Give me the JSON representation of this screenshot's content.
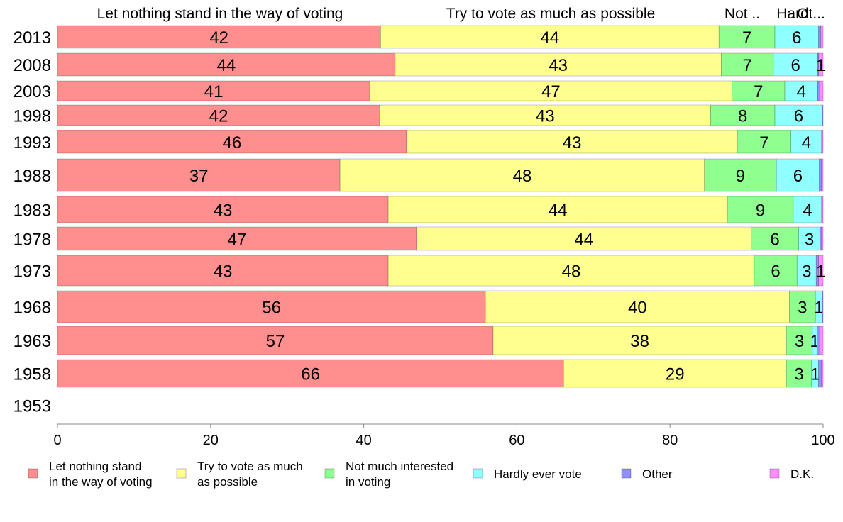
{
  "chart_data": {
    "type": "bar",
    "orientation": "horizontal",
    "stacked": true,
    "top_labels": [
      "Let nothing stand in the way of voting",
      "Try to vote as much as possible",
      "Not ..",
      "Hard",
      "Ot..."
    ],
    "categories": [
      "2013",
      "2008",
      "2003",
      "1998",
      "1993",
      "1988",
      "1983",
      "1978",
      "1973",
      "1968",
      "1963",
      "1958",
      "1953"
    ],
    "series": [
      {
        "name": "Let nothing stand in the way of voting",
        "color": "#ff8f8f",
        "values": [
          42.2,
          44.1,
          40.8,
          42.1,
          45.6,
          36.9,
          43.2,
          46.9,
          43.2,
          55.9,
          56.9,
          66.1,
          null
        ],
        "labels": [
          "42",
          "44",
          "41",
          "42",
          "46",
          "37",
          "43",
          "47",
          "43",
          "56",
          "57",
          "66",
          ""
        ]
      },
      {
        "name": "Try to vote as much as possible",
        "color": "#ffff8f",
        "values": [
          44.2,
          42.6,
          47.3,
          43.2,
          43.2,
          47.6,
          44.3,
          43.7,
          47.8,
          39.7,
          38.3,
          29.1,
          null
        ],
        "labels": [
          "44",
          "43",
          "47",
          "43",
          "43",
          "48",
          "44",
          "44",
          "48",
          "40",
          "38",
          "29",
          ""
        ]
      },
      {
        "name": "Not much interested in voting",
        "color": "#8fff8f",
        "values": [
          7.3,
          6.8,
          6.9,
          8.4,
          7.0,
          9.4,
          8.6,
          6.2,
          5.6,
          3.4,
          3.4,
          3.3,
          null
        ],
        "labels": [
          "7",
          "7",
          "7",
          "8",
          "7",
          "9",
          "9",
          "6",
          "6",
          "3",
          "3",
          "3",
          ""
        ]
      },
      {
        "name": "Hardly ever vote",
        "color": "#8fffff",
        "values": [
          5.7,
          5.8,
          4.3,
          6.2,
          4.0,
          5.6,
          3.7,
          2.8,
          2.5,
          0.9,
          0.6,
          0.9,
          null
        ],
        "labels": [
          "6",
          "6",
          "4",
          "6",
          "4",
          "6",
          "4",
          "3",
          "3",
          "1",
          "1",
          "1",
          ""
        ]
      },
      {
        "name": "Other",
        "color": "#8f8fff",
        "values": [
          0.3,
          0.1,
          0.3,
          0.1,
          0.1,
          0.3,
          0.1,
          0.2,
          0.3,
          0.1,
          0.4,
          0.4,
          null
        ],
        "labels": [
          "",
          "",
          "",
          "",
          "",
          "",
          "",
          "",
          "",
          "",
          "",
          "",
          ""
        ]
      },
      {
        "name": "D.K.",
        "color": "#ff8fff",
        "values": [
          0.3,
          0.6,
          0.4,
          0.0,
          0.1,
          0.2,
          0.1,
          0.2,
          0.6,
          0.0,
          0.4,
          0.2,
          null
        ],
        "labels": [
          "",
          "1",
          "",
          "",
          "",
          "",
          "",
          "",
          "1",
          "",
          "",
          "",
          ""
        ]
      }
    ],
    "xlim": [
      0,
      100
    ],
    "xticks": [
      0,
      20,
      40,
      60,
      80,
      100
    ],
    "legend_position": "bottom",
    "legend_labels": [
      [
        "Let nothing stand",
        "in the way of voting"
      ],
      [
        "Try to vote as much",
        "as possible"
      ],
      [
        "Not much interested",
        "in voting"
      ],
      [
        "Hardly ever vote"
      ],
      [
        "Other"
      ],
      [
        "D.K."
      ]
    ],
    "grid": false
  }
}
